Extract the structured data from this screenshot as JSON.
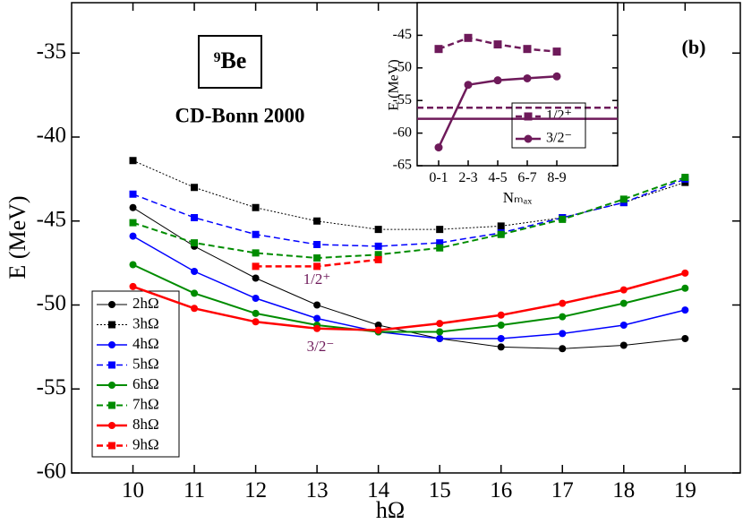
{
  "chart_data": [
    {
      "type": "line",
      "x_label": "hΩ",
      "y_label": "E (MeV)",
      "annotations": [
        "⁹Be",
        "CD-Bonn 2000",
        "(b)",
        "1/2⁺",
        "3/2⁻"
      ],
      "x": [
        10,
        11,
        12,
        13,
        14,
        15,
        16,
        17,
        18,
        19
      ],
      "xlim": [
        9,
        19.9
      ],
      "xticks": [
        10,
        11,
        12,
        13,
        14,
        15,
        16,
        17,
        18,
        19
      ],
      "ylim": [
        -60,
        -32
      ],
      "yticks": [
        -60,
        -55,
        -50,
        -45,
        -40,
        -35
      ],
      "legend": "lower left",
      "series": [
        {
          "name": "2hΩ",
          "color": "#000000",
          "marker": "circle",
          "dash": "solid",
          "values": [
            -44.2,
            -46.5,
            -48.4,
            -50.0,
            -51.2,
            -52.0,
            -52.5,
            -52.6,
            -52.4,
            -52.0
          ]
        },
        {
          "name": "3hΩ",
          "color": "#000000",
          "marker": "square",
          "dash": "dotted",
          "values": [
            -41.4,
            -43.0,
            -44.2,
            -45.0,
            -45.5,
            -45.5,
            -45.3,
            -44.8,
            -43.9,
            -42.7
          ]
        },
        {
          "name": "4hΩ",
          "color": "#0000ff",
          "marker": "circle",
          "dash": "solid",
          "values": [
            -45.9,
            -48.0,
            -49.6,
            -50.8,
            -51.6,
            -52.0,
            -52.0,
            -51.7,
            -51.2,
            -50.3
          ]
        },
        {
          "name": "5hΩ",
          "color": "#0000ff",
          "marker": "square",
          "dash": "dashed",
          "values": [
            -43.4,
            -44.8,
            -45.8,
            -46.4,
            -46.5,
            -46.3,
            -45.7,
            -44.8,
            -43.9,
            -42.5
          ]
        },
        {
          "name": "6hΩ",
          "color": "#008c00",
          "marker": "circle",
          "dash": "solid",
          "values": [
            -47.6,
            -49.3,
            -50.5,
            -51.2,
            -51.6,
            -51.6,
            -51.2,
            -50.7,
            -49.9,
            -49.0
          ]
        },
        {
          "name": "7hΩ",
          "color": "#008c00",
          "marker": "square",
          "dash": "dashed",
          "values": [
            -45.1,
            -46.3,
            -46.9,
            -47.2,
            -47.0,
            -46.6,
            -45.8,
            -44.9,
            -43.7,
            -42.4
          ]
        },
        {
          "name": "8hΩ",
          "color": "#ff0000",
          "marker": "circle",
          "dash": "solid",
          "values": [
            -48.9,
            -50.2,
            -51.0,
            -51.4,
            -51.5,
            -51.1,
            -50.6,
            -49.9,
            -49.1,
            -48.1
          ]
        },
        {
          "name": "9hΩ",
          "color": "#ff0000",
          "marker": "square",
          "dash": "dashed",
          "values": [
            null,
            null,
            -47.7,
            -47.7,
            -47.3,
            null,
            null,
            null,
            null,
            null
          ]
        }
      ]
    },
    {
      "type": "line",
      "x_label": "Nₘₐₓ",
      "y_label": "E (MeV)",
      "categories": [
        "0-1",
        "2-3",
        "4-5",
        "6-7",
        "8-9"
      ],
      "ylim": [
        -65,
        -40
      ],
      "yticks": [
        -65,
        -60,
        -55,
        -50,
        -45
      ],
      "legend": "right",
      "series": [
        {
          "name": "1/2⁺",
          "color": "#6e1a5a",
          "marker": "square",
          "dash": "dashed",
          "values": [
            -47.1,
            -45.4,
            -46.4,
            -47.1,
            -47.5
          ],
          "reference_value": -56.1
        },
        {
          "name": "3/2⁻",
          "color": "#6e1a5a",
          "marker": "circle",
          "dash": "solid",
          "values": [
            -62.2,
            -52.6,
            -51.9,
            -51.6,
            -51.3
          ],
          "reference_value": -57.8
        }
      ]
    }
  ]
}
